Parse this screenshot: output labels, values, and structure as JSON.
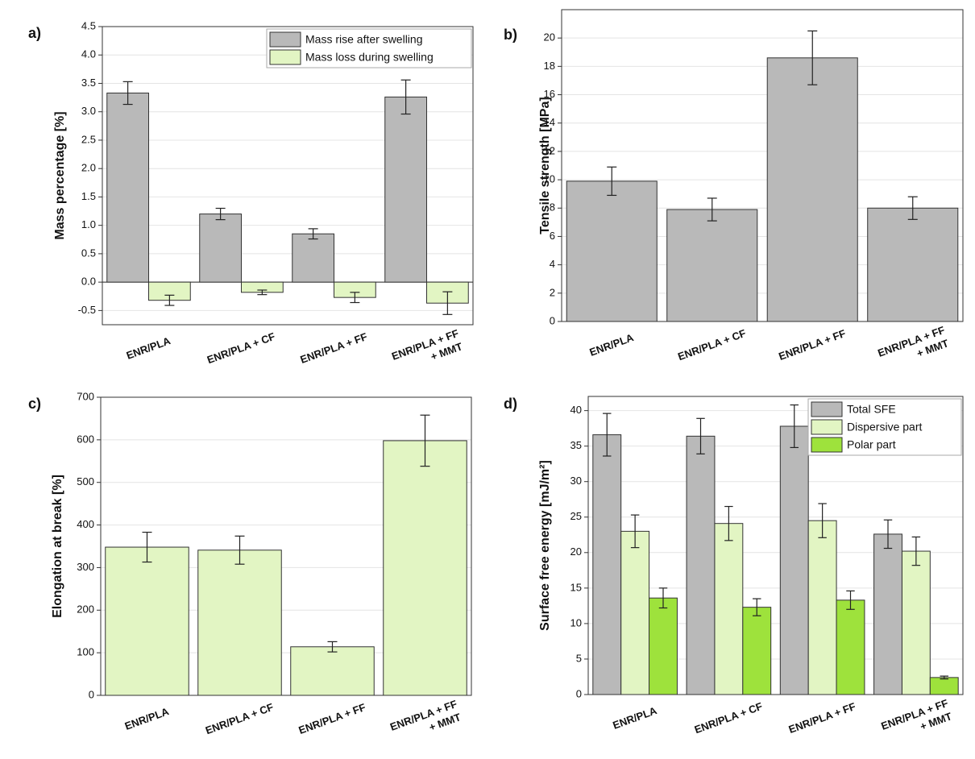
{
  "chart_data": [
    {
      "type": "bar",
      "panel_label": "a)",
      "ylabel": "Mass percentage [%]",
      "categories": [
        "ENR/PLA",
        "ENR/PLA + CF",
        "ENR/PLA + FF",
        "ENR/PLA + FF + MMT"
      ],
      "series": [
        {
          "name": "Mass rise after swelling",
          "color": "#b9b9b9",
          "values": [
            3.33,
            1.2,
            0.85,
            3.26
          ],
          "errors": [
            0.2,
            0.1,
            0.09,
            0.3
          ]
        },
        {
          "name": "Mass loss during swelling",
          "color": "#e2f5c3",
          "values": [
            -0.32,
            -0.18,
            -0.27,
            -0.37
          ],
          "errors": [
            0.09,
            0.04,
            0.09,
            0.2
          ]
        }
      ],
      "ylim": [
        -0.75,
        4.5
      ],
      "yticks": [
        -0.5,
        {
          "value": 0,
          "label": "0.0"
        },
        0.5,
        {
          "value": 1,
          "label": "1.0"
        },
        1.5,
        {
          "value": 2,
          "label": "2.0"
        },
        2.5,
        {
          "value": 3,
          "label": "3.0"
        },
        3.5,
        {
          "value": 4,
          "label": "4.0"
        },
        4.5
      ],
      "grid": true,
      "legend": "upper right"
    },
    {
      "type": "bar",
      "panel_label": "b)",
      "ylabel": "Tensile strength [MPa]",
      "categories": [
        "ENR/PLA",
        "ENR/PLA + CF",
        "ENR/PLA + FF",
        "ENR/PLA + FF + MMT"
      ],
      "series": [
        {
          "color": "#b9b9b9",
          "values": [
            9.9,
            7.9,
            18.6,
            8.0
          ],
          "errors": [
            1.0,
            0.8,
            1.9,
            0.8
          ]
        }
      ],
      "ylim": [
        0,
        22
      ],
      "yticks": [
        0,
        2,
        4,
        6,
        8,
        10,
        12,
        14,
        16,
        18,
        20
      ],
      "grid": true
    },
    {
      "type": "bar",
      "panel_label": "c)",
      "ylabel": "Elongation at break [%]",
      "categories": [
        "ENR/PLA",
        "ENR/PLA + CF",
        "ENR/PLA + FF",
        "ENR/PLA + FF + MMT"
      ],
      "series": [
        {
          "color": "#e2f5c3",
          "values": [
            348,
            341,
            114,
            598
          ],
          "errors": [
            35,
            33,
            12,
            60
          ]
        }
      ],
      "ylim": [
        0,
        700
      ],
      "yticks": [
        0,
        100,
        200,
        300,
        400,
        500,
        600,
        700
      ],
      "grid": true
    },
    {
      "type": "bar",
      "panel_label": "d)",
      "ylabel": "Surface free energy [mJ/m²]",
      "categories": [
        "ENR/PLA",
        "ENR/PLA + CF",
        "ENR/PLA + FF",
        "ENR/PLA + FF + MMT"
      ],
      "series": [
        {
          "name": "Total SFE",
          "color": "#b9b9b9",
          "values": [
            36.6,
            36.4,
            37.8,
            22.6
          ],
          "errors": [
            3.0,
            2.5,
            3.0,
            2.0
          ]
        },
        {
          "name": "Dispersive part",
          "color": "#e2f5c3",
          "values": [
            23.0,
            24.1,
            24.5,
            20.2
          ],
          "errors": [
            2.3,
            2.4,
            2.4,
            2.0
          ]
        },
        {
          "name": "Polar part",
          "color": "#9ee23c",
          "values": [
            13.6,
            12.3,
            13.3,
            2.4
          ],
          "errors": [
            1.4,
            1.2,
            1.3,
            0.2
          ]
        }
      ],
      "ylim": [
        0,
        42
      ],
      "yticks": [
        0,
        5,
        10,
        15,
        20,
        25,
        30,
        35,
        40
      ],
      "grid": true,
      "legend": "upper right"
    }
  ]
}
